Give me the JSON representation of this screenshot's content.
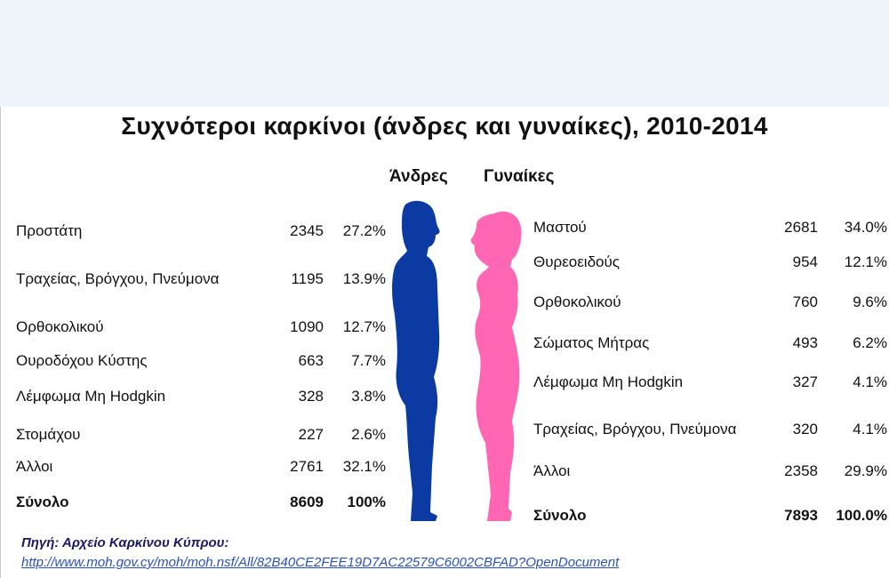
{
  "title": "Συχνότεροι καρκίνοι (άνδρες και γυναίκες), 2010-2014",
  "men_label": "Άνδρες",
  "women_label": "Γυναίκες",
  "colors": {
    "men": "#0b3aa3",
    "women": "#ff66b3"
  },
  "chart_data": {
    "type": "table",
    "title": "Συχνότεροι καρκίνοι (άνδρες και γυναίκες), 2010-2014",
    "columns": [
      "Άνδρες",
      "Γυναίκες"
    ],
    "men": [
      {
        "site": "Προστάτη",
        "count": "2345",
        "pct": "27.2%"
      },
      {
        "site": "Τραχείας, Βρόγχου, Πνεύμονα",
        "count": "1195",
        "pct": "13.9%"
      },
      {
        "site": "Ορθοκολικού",
        "count": "1090",
        "pct": "12.7%"
      },
      {
        "site": "Ουροδόχου Κύστης",
        "count": "663",
        "pct": "7.7%"
      },
      {
        "site": "Λέμφωμα Μη  Hodgkin",
        "count": "328",
        "pct": "3.8%"
      },
      {
        "site": "Στομάχου",
        "count": "227",
        "pct": "2.6%"
      },
      {
        "site": "Άλλοι",
        "count": "2761",
        "pct": "32.1%"
      }
    ],
    "men_total": {
      "label": "Σύνολο",
      "count": "8609",
      "pct": "100%"
    },
    "women": [
      {
        "site": "Μαστού",
        "count": "2681",
        "pct": "34.0%"
      },
      {
        "site": "Θυρεοειδούς",
        "count": "954",
        "pct": "12.1%"
      },
      {
        "site": "Ορθοκολικού",
        "count": "760",
        "pct": "9.6%"
      },
      {
        "site": "Σώματος Μήτρας",
        "count": "493",
        "pct": "6.2%"
      },
      {
        "site": "Λέμφωμα Μη Hodgkin",
        "count": "327",
        "pct": "4.1%"
      },
      {
        "site": "Τραχείας, Βρόγχου, Πνεύμονα",
        "count": "320",
        "pct": "4.1%"
      },
      {
        "site": "Άλλοι",
        "count": "2358",
        "pct": "29.9%"
      }
    ],
    "women_total": {
      "label": "Σύνολο",
      "count": "7893",
      "pct": "100.0%"
    }
  },
  "source": {
    "label": "Πηγή: Αρχείο Καρκίνου Κύπρου:",
    "url": "http://www.moh.gov.cy/moh/moh.nsf/All/82B40CE2FEE19D7AC22579C6002CBFAD?OpenDocument"
  }
}
